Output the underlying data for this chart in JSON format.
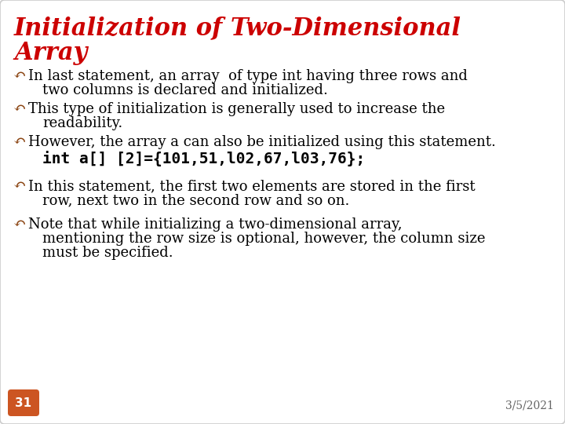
{
  "title_line1": "Initialization of Two-Dimensional",
  "title_line2": "Array",
  "title_color": "#cc0000",
  "background_color": "#ffffff",
  "border_color": "#cccccc",
  "bullet_color": "#8B4513",
  "text_color": "#000000",
  "code_color": "#000000",
  "bullet_symbol": "↶",
  "bullets": [
    {
      "main": "In last statement, an array  of type int having three rows and",
      "cont": "two columns is declared and initialized."
    },
    {
      "main": "This type of initialization is generally used to increase the",
      "cont": "readability."
    },
    {
      "main": "However, the array a can also be initialized using this statement.",
      "cont": null,
      "code": "int a[] [2]={101,51,l02,67,l03,76};"
    },
    {
      "main": "In this statement, the first two elements are stored in the first",
      "cont": "row, next two in the second row and so on."
    },
    {
      "main": "Note that while initializing a two-dimensional array,",
      "cont": "mentioning the row size is optional, however, the column size",
      "cont2": "must be specified."
    }
  ],
  "slide_number": "31",
  "slide_number_bg": "#cc5522",
  "date": "3/5/2021",
  "font_size_title": 22,
  "font_size_body": 13,
  "font_size_code": 14
}
